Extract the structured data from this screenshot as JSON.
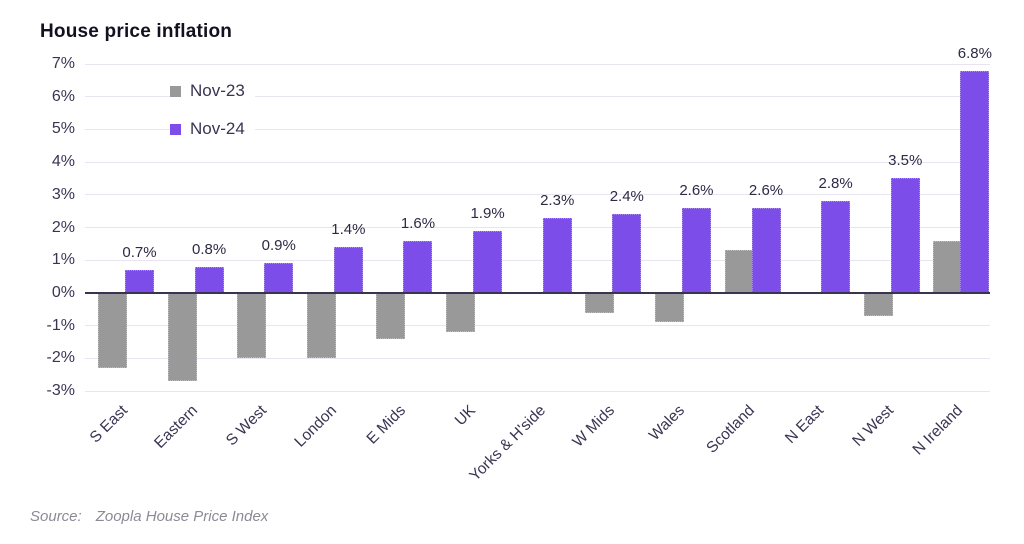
{
  "title": "House price inflation",
  "source": {
    "label": "Source:",
    "text": "Zoopla House Price Index"
  },
  "colors": {
    "nov23_gray": "#999999",
    "nov24_purple": "#7C4DE8",
    "axis_line": "#39344F",
    "gridline": "#E8E5F0",
    "label_text": "#3A3453",
    "title_text": "#14101F",
    "source_text": "#8C8A94"
  },
  "chart_data": {
    "type": "bar",
    "title": "House price inflation",
    "categories": [
      "S East",
      "Eastern",
      "S West",
      "London",
      "E Mids",
      "UK",
      "Yorks & H'side",
      "W Mids",
      "Wales",
      "Scotland",
      "N East",
      "N West",
      "N Ireland"
    ],
    "series": [
      {
        "name": "Nov-23",
        "color": "#999999",
        "values": [
          -2.3,
          -2.7,
          -2.0,
          -2.0,
          -1.4,
          -1.2,
          0.0,
          -0.6,
          -0.9,
          1.3,
          0.0,
          -0.7,
          1.6
        ]
      },
      {
        "name": "Nov-24",
        "color": "#7C4DE8",
        "values": [
          0.7,
          0.8,
          0.9,
          1.4,
          1.6,
          1.9,
          2.3,
          2.4,
          2.6,
          2.6,
          2.8,
          3.5,
          6.8
        ],
        "data_labels": [
          "0.7%",
          "0.8%",
          "0.9%",
          "1.4%",
          "1.6%",
          "1.9%",
          "2.3%",
          "2.4%",
          "2.6%",
          "2.6%",
          "2.8%",
          "3.5%",
          "6.8%"
        ]
      }
    ],
    "ylim": [
      -3,
      7
    ],
    "y_tick_step": 1,
    "y_ticks": [
      "7%",
      "6%",
      "5%",
      "4%",
      "3%",
      "2%",
      "1%",
      "0%",
      "-1%",
      "-2%",
      "-3%"
    ],
    "grid": true,
    "legend_position": "inside-top-left",
    "xlabel": "",
    "ylabel": ""
  }
}
